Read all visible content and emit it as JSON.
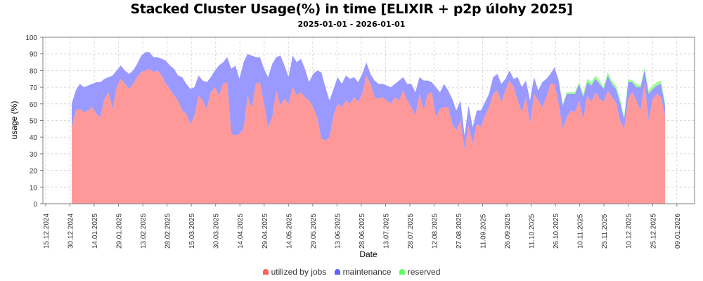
{
  "title": "Stacked Cluster Usage(%) in time [ELIXIR + p2p úlohy 2025]",
  "subtitle": "2025-01-01 - 2026-01-01",
  "legend": [
    {
      "label": "utilized by jobs",
      "color": "#ff8080"
    },
    {
      "label": "maintenance",
      "color": "#8080ff"
    },
    {
      "label": "reserved",
      "color": "#80ff80"
    }
  ],
  "chart_data": {
    "type": "area",
    "stacked": true,
    "title": "Stacked Cluster Usage(%) in time [ELIXIR + p2p úlohy 2025]",
    "subtitle": "2025-01-01 - 2026-01-01",
    "xlabel": "Date",
    "ylabel": "usage (%)",
    "ylim": [
      0,
      100
    ],
    "yticks": [
      0,
      10,
      20,
      30,
      40,
      50,
      60,
      70,
      80,
      90,
      100
    ],
    "xticks": [
      "15.12.2024",
      "30.12.2024",
      "14.01.2025",
      "29.01.2025",
      "13.02.2025",
      "28.02.2025",
      "15.03.2025",
      "30.03.2025",
      "14.04.2025",
      "29.04.2025",
      "14.05.2025",
      "29.05.2025",
      "13.06.2025",
      "28.06.2025",
      "13.07.2025",
      "28.07.2025",
      "12.08.2025",
      "27.08.2025",
      "11.09.2025",
      "26.09.2025",
      "11.10.2025",
      "26.10.2025",
      "10.11.2025",
      "25.11.2025",
      "10.12.2025",
      "25.12.2025",
      "09.01.2026"
    ],
    "grid": true,
    "legend_position": "bottom",
    "x_start": "2025-01-01",
    "x_end": "2025-12-29",
    "sample_step_days": 2.6,
    "series": [
      {
        "name": "utilized by jobs",
        "color": "#ff8080",
        "values": [
          46,
          56,
          57,
          55,
          56,
          58,
          54,
          52,
          63,
          67,
          57,
          70,
          75,
          72,
          69,
          72,
          76,
          79,
          80,
          81,
          79,
          80,
          77,
          72,
          69,
          65,
          62,
          56,
          54,
          48,
          53,
          65,
          62,
          57,
          67,
          70,
          65,
          72,
          73,
          42,
          41,
          42,
          45,
          65,
          57,
          72,
          73,
          60,
          46,
          52,
          68,
          59,
          63,
          60,
          70,
          65,
          67,
          64,
          62,
          58,
          52,
          39,
          38,
          40,
          53,
          60,
          58,
          62,
          60,
          64,
          61,
          66,
          77,
          72,
          64,
          63,
          64,
          62,
          60,
          64,
          62,
          68,
          62,
          58,
          53,
          66,
          56,
          66,
          67,
          52,
          57,
          58,
          58,
          48,
          44,
          50,
          33,
          47,
          36,
          48,
          46,
          53,
          58,
          66,
          68,
          61,
          68,
          74,
          70,
          62,
          55,
          64,
          48,
          66,
          62,
          58,
          64,
          72,
          72,
          60,
          45,
          52,
          56,
          55,
          62,
          51,
          65,
          61,
          67,
          63,
          61,
          68,
          64,
          61,
          50,
          45,
          63,
          67,
          62,
          56,
          72,
          50,
          63,
          66,
          64,
          53
        ]
      },
      {
        "name": "maintenance",
        "color": "#8080ff",
        "values": [
          14,
          12,
          15,
          15,
          15,
          14,
          19,
          21,
          12,
          9,
          20,
          10,
          8,
          8,
          9,
          8,
          8,
          10,
          11,
          10,
          9,
          8,
          10,
          14,
          14,
          16,
          15,
          20,
          18,
          21,
          17,
          12,
          12,
          16,
          9,
          10,
          18,
          13,
          15,
          39,
          42,
          33,
          40,
          25,
          32,
          16,
          15,
          21,
          30,
          32,
          20,
          30,
          20,
          16,
          19,
          20,
          20,
          17,
          11,
          20,
          28,
          40,
          32,
          22,
          16,
          16,
          14,
          15,
          15,
          12,
          12,
          12,
          8,
          6,
          10,
          9,
          8,
          9,
          10,
          8,
          12,
          8,
          10,
          14,
          14,
          10,
          18,
          8,
          6,
          18,
          10,
          14,
          10,
          15,
          12,
          12,
          8,
          12,
          10,
          8,
          10,
          8,
          8,
          10,
          10,
          11,
          7,
          6,
          5,
          14,
          15,
          10,
          14,
          10,
          6,
          15,
          11,
          6,
          10,
          14,
          14,
          14,
          10,
          11,
          10,
          13,
          8,
          10,
          8,
          9,
          8,
          9,
          8,
          8,
          11,
          6,
          10,
          6,
          8,
          14,
          8,
          16,
          6,
          5,
          8,
          6
        ]
      },
      {
        "name": "reserved",
        "color": "#80ff80",
        "values": [
          0,
          0,
          0,
          0,
          0,
          0,
          0,
          0,
          0,
          0,
          0,
          0,
          0,
          0,
          0,
          0,
          0,
          0,
          0,
          0,
          0,
          0,
          0,
          0,
          0,
          0,
          0,
          0,
          0,
          0,
          0,
          0,
          0,
          0,
          0,
          0,
          0,
          0,
          0,
          0,
          0,
          0,
          0,
          0,
          0,
          0,
          0,
          0,
          0,
          0,
          0,
          0,
          0,
          0,
          0,
          0,
          0,
          0,
          0,
          0,
          0,
          0,
          0,
          0,
          0,
          0,
          0,
          0,
          0,
          0,
          0,
          0,
          0,
          0,
          0,
          0,
          0,
          0,
          0,
          0,
          0,
          0,
          0,
          0,
          0,
          0,
          0,
          0,
          0,
          0,
          0,
          0,
          0,
          0,
          0,
          0,
          0,
          0,
          0,
          0,
          0,
          0,
          0,
          0,
          0,
          0,
          0,
          0,
          0,
          0,
          0,
          0,
          0,
          0,
          0,
          0,
          0,
          0,
          0,
          0,
          1,
          1,
          1,
          1,
          1,
          2,
          2,
          2,
          2,
          2,
          1,
          2,
          2,
          2,
          2,
          1,
          2,
          1,
          2,
          1,
          2,
          2,
          2,
          2,
          2,
          2
        ]
      }
    ]
  }
}
